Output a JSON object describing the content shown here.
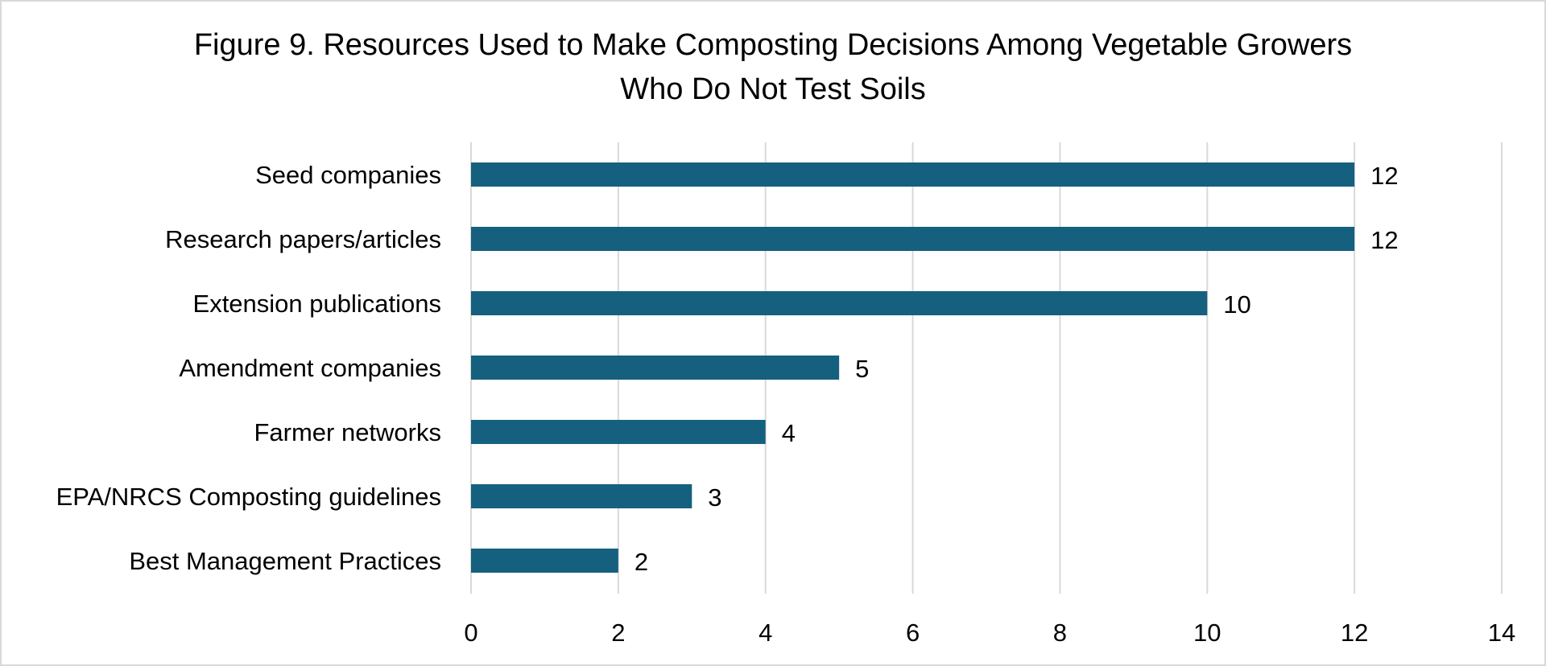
{
  "chart_data": {
    "type": "bar",
    "orientation": "horizontal",
    "title_lines": [
      "Figure 9. Resources Used to Make Composting Decisions Among Vegetable Growers",
      "Who Do Not Test Soils"
    ],
    "categories": [
      "Seed companies",
      "Research papers/articles",
      "Extension publications",
      "Amendment companies",
      "Farmer networks",
      "EPA/NRCS Composting guidelines",
      "Best Management Practices"
    ],
    "values": [
      12,
      12,
      10,
      5,
      4,
      3,
      2
    ],
    "data_labels": [
      "12",
      "12",
      "10",
      "5",
      "4",
      "3",
      "2"
    ],
    "xlim": [
      0,
      14
    ],
    "xticks": [
      0,
      2,
      4,
      6,
      8,
      10,
      12,
      14
    ],
    "xtick_labels": [
      "0",
      "2",
      "4",
      "6",
      "8",
      "10",
      "12",
      "14"
    ],
    "grid": "vertical",
    "legend": "none",
    "bar_color": "#16607f",
    "grid_color": "#d9d9d9"
  }
}
